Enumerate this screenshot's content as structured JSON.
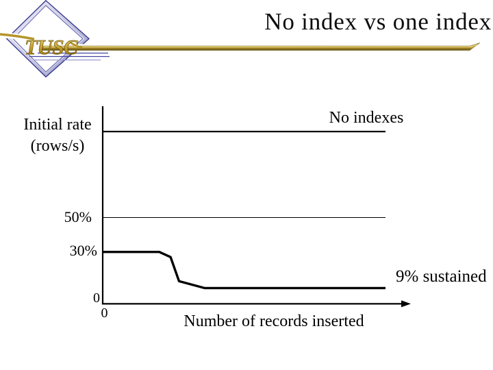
{
  "slide": {
    "title": "No index vs one index",
    "background": "#FFFFFF"
  },
  "logo": {
    "text": "TUSC",
    "gold_color": "#B59427",
    "blue_color": "#3A3A8C"
  },
  "chart": {
    "y_axis_label_line1": "Initial rate",
    "y_axis_label_line2": "(rows/s)",
    "x_axis_label": "Number of records inserted",
    "y_origin_label": "0",
    "x_origin_label": "0",
    "series_label_no_indexes": "No indexes",
    "ref_label_50": "50%",
    "ref_label_30": "30%",
    "sustained_label": "9% sustained"
  },
  "chart_data": {
    "type": "line",
    "title": "No index vs one index",
    "xlabel": "Number of records inserted",
    "ylabel": "Initial rate (rows/s)",
    "y_units": "percent of initial no-index insert rate",
    "x_units": "schematic; only origin 0 labeled",
    "xlim": [
      0,
      109
    ],
    "ylim": [
      0,
      115
    ],
    "grid": false,
    "legend_position": "none",
    "series": [
      {
        "name": "No indexes",
        "style": "medium",
        "x": [
          0,
          100
        ],
        "y": [
          100,
          100
        ]
      },
      {
        "name": "50% reference line",
        "style": "thin",
        "x": [
          0,
          100
        ],
        "y": [
          50,
          50
        ]
      },
      {
        "name": "One index",
        "style": "thick",
        "x": [
          0,
          20,
          24,
          27,
          36,
          100
        ],
        "y": [
          30,
          30,
          27,
          13,
          9,
          9
        ]
      }
    ],
    "annotations": [
      {
        "text": "No indexes",
        "position": "above flat 100% line"
      },
      {
        "text": "50%",
        "position": "left of thin 50% reference line"
      },
      {
        "text": "30%",
        "position": "left of one-index curve start"
      },
      {
        "text": "9% sustained",
        "position": "right end of one-index curve"
      },
      {
        "text": "0",
        "position": "origin of both axes"
      }
    ]
  }
}
